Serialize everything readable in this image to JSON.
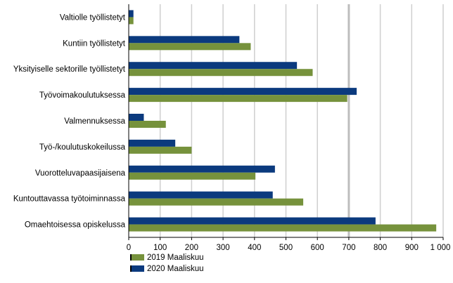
{
  "chart_data": {
    "type": "bar",
    "orientation": "horizontal",
    "categories": [
      "Valtiolle työllistetyt",
      "Kuntiin työllistetyt",
      "Yksityiselle sektorille työllistetyt",
      "Työvoimakoulutuksessa",
      "Valmennuksessa",
      "Työ-/koulutuskokeilussa",
      "Vuorotteluvapaasijaisena",
      "Kuntouttavassa työtoiminnassa",
      "Omaehtoisessa opiskelussa"
    ],
    "series": [
      {
        "name": "2020 Maaliskuu",
        "color": "#0b3a7e",
        "values": [
          15,
          352,
          535,
          725,
          48,
          148,
          465,
          458,
          785
        ]
      },
      {
        "name": "2019 Maaliskuu",
        "color": "#76923c",
        "values": [
          15,
          388,
          585,
          695,
          118,
          200,
          403,
          555,
          978
        ]
      }
    ],
    "xlim": [
      0,
      1000
    ],
    "xticks": [
      0,
      100,
      200,
      300,
      400,
      500,
      600,
      700,
      800,
      900,
      1000
    ],
    "xtick_labels": [
      "0",
      "100",
      "200",
      "300",
      "400",
      "500",
      "600",
      "700",
      "800",
      "900",
      "1 000"
    ],
    "grid": true,
    "legend": [
      {
        "name": "2019 Maaliskuu",
        "color": "#76923c"
      },
      {
        "name": "2020 Maaliskuu",
        "color": "#0b3a7e"
      }
    ],
    "legend_position": "bottom-left"
  }
}
